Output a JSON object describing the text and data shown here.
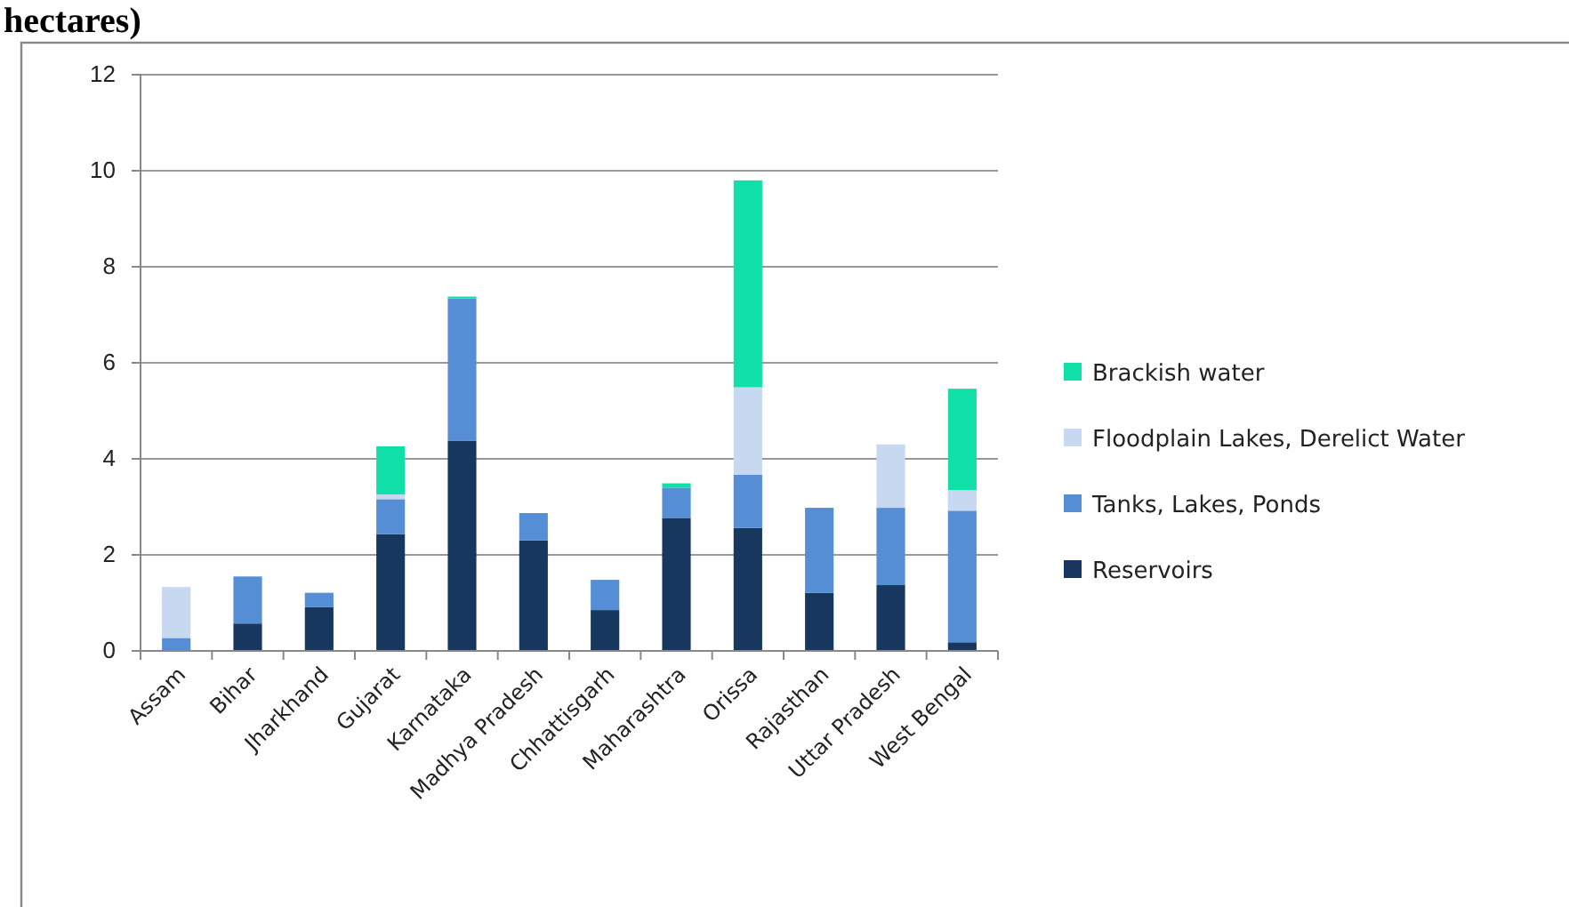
{
  "chart_data": {
    "type": "bar",
    "title": "hectares)",
    "stacked": true,
    "categories": [
      "Assam",
      "Bihar",
      "Jharkhand",
      "Gujarat",
      "Karnataka",
      "Madhya Pradesh",
      "Chhattisgarh",
      "Maharashtra",
      "Orissa",
      "Rajasthan",
      "Uttar Pradesh",
      "West Bengal"
    ],
    "series": [
      {
        "name": "Reservoirs",
        "color": "#17375e",
        "values": [
          0,
          0.57,
          0.91,
          2.43,
          4.38,
          2.3,
          0.85,
          2.77,
          2.56,
          1.21,
          1.37,
          0.18
        ]
      },
      {
        "name": "Tanks, Lakes, Ponds",
        "color": "#558ed5",
        "values": [
          0.27,
          0.98,
          0.3,
          0.73,
          2.96,
          0.57,
          0.63,
          0.63,
          1.11,
          1.77,
          1.61,
          2.74
        ]
      },
      {
        "name": "Floodplain Lakes, Derelict Water",
        "color": "#c6d9f1",
        "values": [
          1.06,
          0,
          0,
          0.1,
          0,
          0,
          0,
          0,
          1.82,
          0,
          1.32,
          0.43
        ]
      },
      {
        "name": "Brackish water",
        "color": "#10e0a8",
        "values": [
          0,
          0,
          0,
          1.0,
          0.04,
          0,
          0,
          0.09,
          4.31,
          0,
          0,
          2.11
        ]
      }
    ],
    "ylim": [
      0,
      12
    ],
    "yticks": [
      0,
      2,
      4,
      6,
      8,
      10,
      12
    ],
    "grid": "y",
    "legend": "right"
  }
}
